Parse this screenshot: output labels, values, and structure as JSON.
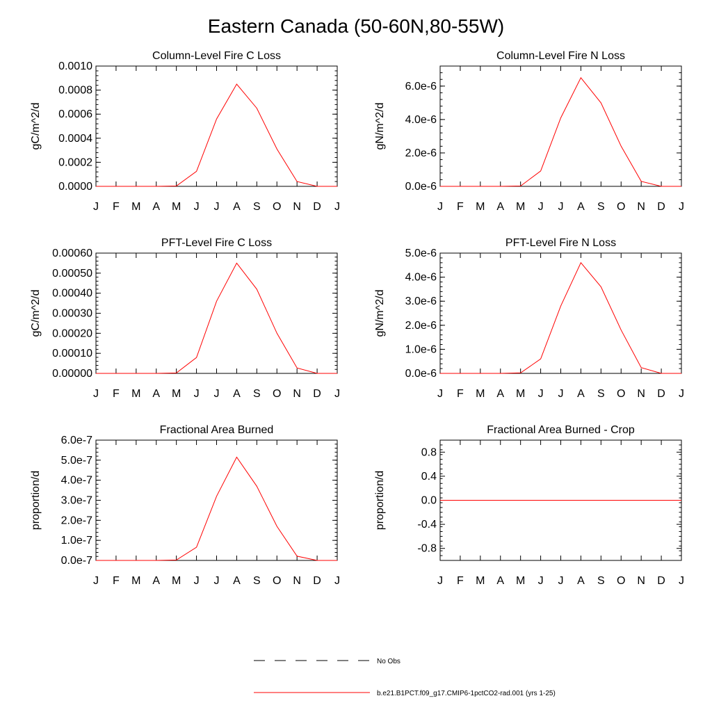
{
  "figure": {
    "title": "Eastern Canada (50-60N,80-55W)",
    "series_color": "#ff0000"
  },
  "legend": {
    "items": [
      {
        "label": "No Obs",
        "style": "dashed",
        "color": "#000000"
      },
      {
        "label": "b.e21.B1PCT.f09_g17.CMIP6-1pctCO2-rad.001 (yrs 1-25)",
        "style": "solid",
        "color": "#ff0000"
      }
    ]
  },
  "chart_data": [
    {
      "type": "line",
      "title": "Column-Level Fire C Loss",
      "ylabel": "gC/m^2/d",
      "xlabel": "",
      "categories": [
        "J",
        "F",
        "M",
        "A",
        "M",
        "J",
        "J",
        "A",
        "S",
        "O",
        "N",
        "D",
        "J"
      ],
      "ylim": [
        0,
        0.001
      ],
      "yticks": [
        0,
        0.0002,
        0.0004,
        0.0006,
        0.0008,
        0.001
      ],
      "ytick_labels": [
        "0.0000",
        "0.0002",
        "0.0004",
        "0.0006",
        "0.0008",
        "0.0010"
      ],
      "series": [
        {
          "values": [
            0,
            0,
            0,
            0,
            3e-06,
            0.000125,
            0.00056,
            0.00085,
            0.00065,
            0.00031,
            4e-05,
            0,
            0
          ]
        }
      ]
    },
    {
      "type": "line",
      "title": "Column-Level Fire N Loss",
      "ylabel": "gN/m^2/d",
      "xlabel": "",
      "categories": [
        "J",
        "F",
        "M",
        "A",
        "M",
        "J",
        "J",
        "A",
        "S",
        "O",
        "N",
        "D",
        "J"
      ],
      "ylim": [
        0,
        7.2e-06
      ],
      "yticks": [
        0,
        2e-06,
        4e-06,
        6e-06
      ],
      "ytick_labels": [
        "0.0e-6",
        "2.0e-6",
        "4.0e-6",
        "6.0e-6"
      ],
      "series": [
        {
          "values": [
            0,
            0,
            0,
            0,
            2e-08,
            9.2e-07,
            4.1e-06,
            6.5e-06,
            5e-06,
            2.4e-06,
            3e-07,
            0,
            0
          ]
        }
      ]
    },
    {
      "type": "line",
      "title": "PFT-Level Fire C Loss",
      "ylabel": "gC/m^2/d",
      "xlabel": "",
      "categories": [
        "J",
        "F",
        "M",
        "A",
        "M",
        "J",
        "J",
        "A",
        "S",
        "O",
        "N",
        "D",
        "J"
      ],
      "ylim": [
        0,
        0.0006
      ],
      "yticks": [
        0,
        0.0001,
        0.0002,
        0.0003,
        0.0004,
        0.0005,
        0.0006
      ],
      "ytick_labels": [
        "0.00000",
        "0.00010",
        "0.00020",
        "0.00030",
        "0.00040",
        "0.00050",
        "0.00060"
      ],
      "series": [
        {
          "values": [
            0,
            0,
            0,
            0,
            2e-06,
            7.9e-05,
            0.00036,
            0.00055,
            0.00042,
            0.0002,
            2.7e-05,
            0,
            0
          ]
        }
      ]
    },
    {
      "type": "line",
      "title": "PFT-Level Fire N Loss",
      "ylabel": "gN/m^2/d",
      "xlabel": "",
      "categories": [
        "J",
        "F",
        "M",
        "A",
        "M",
        "J",
        "J",
        "A",
        "S",
        "O",
        "N",
        "D",
        "J"
      ],
      "ylim": [
        0,
        5e-06
      ],
      "yticks": [
        0,
        1e-06,
        2e-06,
        3e-06,
        4e-06,
        5e-06
      ],
      "ytick_labels": [
        "0.0e-6",
        "1.0e-6",
        "2.0e-6",
        "3.0e-6",
        "4.0e-6",
        "5.0e-6"
      ],
      "series": [
        {
          "values": [
            0,
            0,
            0,
            0,
            2e-08,
            6e-07,
            2.8e-06,
            4.6e-06,
            3.6e-06,
            1.8e-06,
            2.4e-07,
            0,
            0
          ]
        }
      ]
    },
    {
      "type": "line",
      "title": "Fractional Area Burned",
      "ylabel": "proportion/d",
      "xlabel": "",
      "categories": [
        "J",
        "F",
        "M",
        "A",
        "M",
        "J",
        "J",
        "A",
        "S",
        "O",
        "N",
        "D",
        "J"
      ],
      "ylim": [
        0,
        6e-07
      ],
      "yticks": [
        0,
        1e-07,
        2e-07,
        3e-07,
        4e-07,
        5e-07,
        6e-07
      ],
      "ytick_labels": [
        "0.0e-7",
        "1.0e-7",
        "2.0e-7",
        "3.0e-7",
        "4.0e-7",
        "5.0e-7",
        "6.0e-7"
      ],
      "series": [
        {
          "values": [
            0,
            0,
            0,
            0,
            2e-09,
            6.6e-08,
            3.2e-07,
            5.15e-07,
            3.7e-07,
            1.7e-07,
            2.1e-08,
            0,
            0
          ]
        }
      ]
    },
    {
      "type": "line",
      "title": "Fractional Area Burned - Crop",
      "ylabel": "proportion/d",
      "xlabel": "",
      "categories": [
        "J",
        "F",
        "M",
        "A",
        "M",
        "J",
        "J",
        "A",
        "S",
        "O",
        "N",
        "D",
        "J"
      ],
      "ylim": [
        -1,
        1
      ],
      "yticks": [
        -0.8,
        -0.4,
        0,
        0.4,
        0.8
      ],
      "ytick_labels": [
        "-0.8",
        "-0.4",
        "0.0",
        "0.4",
        "0.8"
      ],
      "series": [
        {
          "values": [
            0,
            0,
            0,
            0,
            0,
            0,
            0,
            0,
            0,
            0,
            0,
            0,
            0
          ]
        }
      ]
    }
  ]
}
